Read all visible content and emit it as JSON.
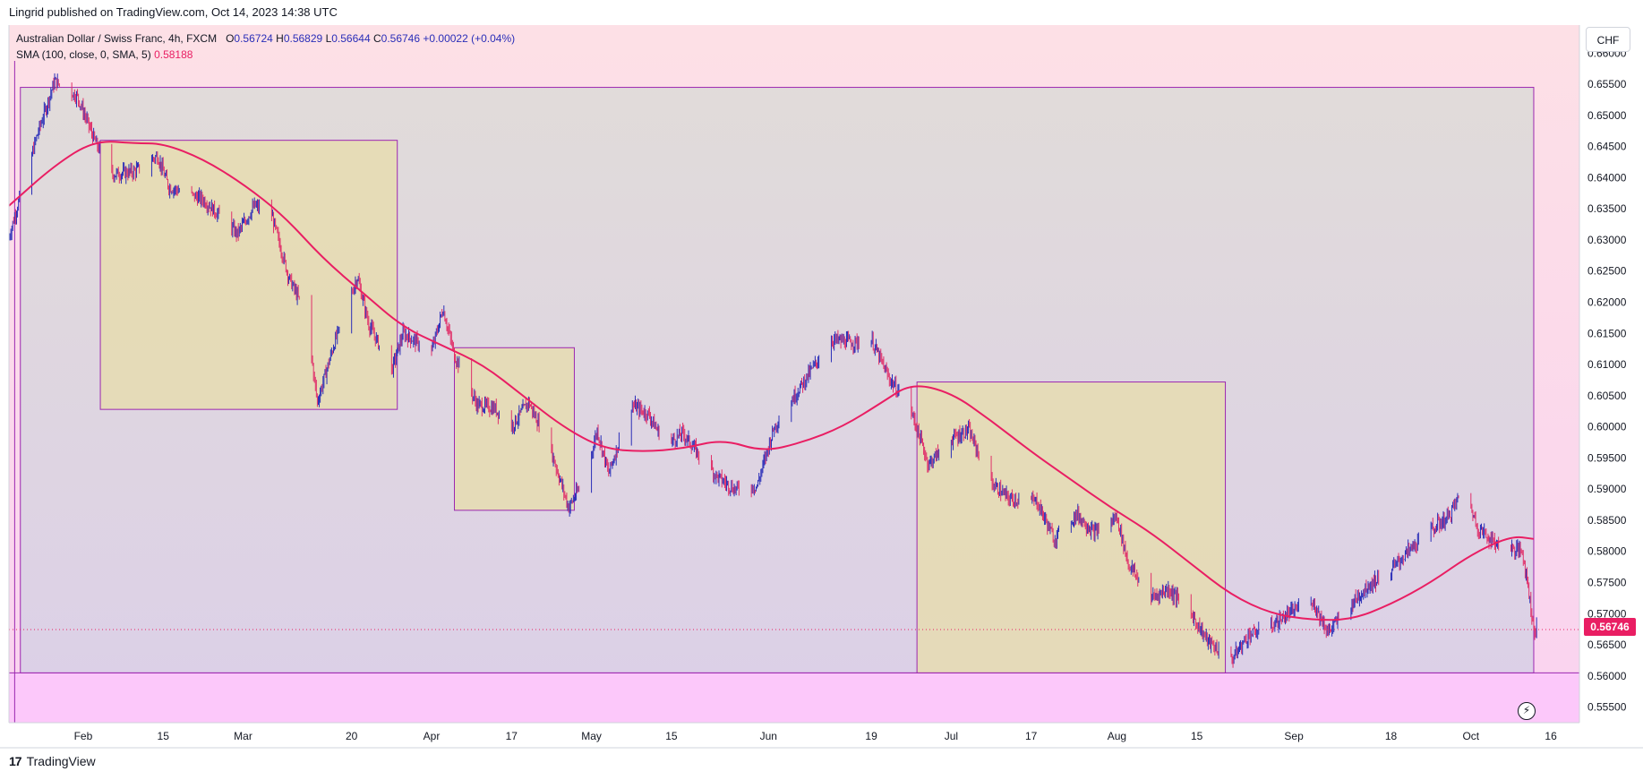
{
  "header": {
    "published": "Lingrid published on TradingView.com, Oct 14, 2023 14:38 UTC"
  },
  "legend": {
    "symbol": "Australian Dollar / Swiss Franc, 4h, FXCM",
    "open_label": "O",
    "open": "0.56724",
    "high_label": "H",
    "high": "0.56829",
    "low_label": "L",
    "low": "0.56644",
    "close_label": "C",
    "close": "0.56746",
    "change": "+0.00022 (+0.04%)",
    "sma_label": "SMA (100, close, 0, SMA, 5)",
    "sma_value": "0.58188"
  },
  "currency_button": "CHF",
  "last_price_tag": "0.56746",
  "footer": {
    "logo": "17",
    "brand": "TradingView"
  },
  "colors": {
    "candle_up": "#2a2eb8",
    "candle_down": "#e0306a",
    "sma_line": "#e91e63",
    "range_box_border": "#9c27b0",
    "range_box_fill": "#d6d6d6",
    "highlight_box_fill": "#e6dcb0",
    "bg_top": "#fde0e6",
    "bg_bottom": "#fcc8fa"
  },
  "chart_data": {
    "type": "candlestick",
    "symbol": "AUDCHF",
    "interval": "4h",
    "ylim": [
      0.5525,
      0.6645
    ],
    "y_ticks": [
      "0.66000",
      "0.65500",
      "0.65000",
      "0.64500",
      "0.64000",
      "0.63500",
      "0.63000",
      "0.62500",
      "0.62000",
      "0.61500",
      "0.61000",
      "0.60500",
      "0.60000",
      "0.59500",
      "0.59000",
      "0.58500",
      "0.58000",
      "0.57500",
      "0.57000",
      "0.56500",
      "0.56000",
      "0.55500"
    ],
    "x_ticks": [
      {
        "label": "Feb",
        "date": "2023-02-01"
      },
      {
        "label": "15",
        "date": "2023-02-15"
      },
      {
        "label": "Mar",
        "date": "2023-03-01"
      },
      {
        "label": "20",
        "date": "2023-03-20"
      },
      {
        "label": "Apr",
        "date": "2023-04-03"
      },
      {
        "label": "17",
        "date": "2023-04-17"
      },
      {
        "label": "May",
        "date": "2023-05-01"
      },
      {
        "label": "15",
        "date": "2023-05-15"
      },
      {
        "label": "Jun",
        "date": "2023-06-01"
      },
      {
        "label": "19",
        "date": "2023-06-19"
      },
      {
        "label": "Jul",
        "date": "2023-07-03"
      },
      {
        "label": "17",
        "date": "2023-07-17"
      },
      {
        "label": "Aug",
        "date": "2023-08-01"
      },
      {
        "label": "15",
        "date": "2023-08-15"
      },
      {
        "label": "Sep",
        "date": "2023-09-01"
      },
      {
        "label": "18",
        "date": "2023-09-18"
      },
      {
        "label": "Oct",
        "date": "2023-10-02"
      },
      {
        "label": "16",
        "date": "2023-10-16"
      }
    ],
    "price_path": [
      {
        "date": "2023-01-19",
        "price": 0.6305
      },
      {
        "date": "2023-01-24",
        "price": 0.647
      },
      {
        "date": "2023-01-27",
        "price": 0.6555
      },
      {
        "date": "2023-01-31",
        "price": 0.653
      },
      {
        "date": "2023-02-03",
        "price": 0.646
      },
      {
        "date": "2023-02-06",
        "price": 0.6405
      },
      {
        "date": "2023-02-10",
        "price": 0.641
      },
      {
        "date": "2023-02-14",
        "price": 0.6435
      },
      {
        "date": "2023-02-16",
        "price": 0.6385
      },
      {
        "date": "2023-02-22",
        "price": 0.6365
      },
      {
        "date": "2023-02-28",
        "price": 0.631
      },
      {
        "date": "2023-03-03",
        "price": 0.6355
      },
      {
        "date": "2023-03-06",
        "price": 0.634
      },
      {
        "date": "2023-03-09",
        "price": 0.624
      },
      {
        "date": "2023-03-12",
        "price": 0.618
      },
      {
        "date": "2023-03-14",
        "price": 0.604
      },
      {
        "date": "2023-03-17",
        "price": 0.6135
      },
      {
        "date": "2023-03-21",
        "price": 0.624
      },
      {
        "date": "2023-03-23",
        "price": 0.6165
      },
      {
        "date": "2023-03-27",
        "price": 0.609
      },
      {
        "date": "2023-03-29",
        "price": 0.615
      },
      {
        "date": "2023-04-03",
        "price": 0.612
      },
      {
        "date": "2023-04-05",
        "price": 0.619
      },
      {
        "date": "2023-04-07",
        "price": 0.6115
      },
      {
        "date": "2023-04-11",
        "price": 0.6035
      },
      {
        "date": "2023-04-14",
        "price": 0.603
      },
      {
        "date": "2023-04-17",
        "price": 0.6
      },
      {
        "date": "2023-04-20",
        "price": 0.604
      },
      {
        "date": "2023-04-24",
        "price": 0.596
      },
      {
        "date": "2023-04-27",
        "price": 0.587
      },
      {
        "date": "2023-04-30",
        "price": 0.592
      },
      {
        "date": "2023-05-02",
        "price": 0.5995
      },
      {
        "date": "2023-05-04",
        "price": 0.5925
      },
      {
        "date": "2023-05-08",
        "price": 0.6035
      },
      {
        "date": "2023-05-11",
        "price": 0.602
      },
      {
        "date": "2023-05-14",
        "price": 0.597
      },
      {
        "date": "2023-05-17",
        "price": 0.599
      },
      {
        "date": "2023-05-19",
        "price": 0.5965
      },
      {
        "date": "2023-05-23",
        "price": 0.592
      },
      {
        "date": "2023-05-26",
        "price": 0.59
      },
      {
        "date": "2023-05-30",
        "price": 0.5905
      },
      {
        "date": "2023-06-02",
        "price": 0.6
      },
      {
        "date": "2023-06-07",
        "price": 0.607
      },
      {
        "date": "2023-06-12",
        "price": 0.614
      },
      {
        "date": "2023-06-16",
        "price": 0.6135
      },
      {
        "date": "2023-06-19",
        "price": 0.614
      },
      {
        "date": "2023-06-22",
        "price": 0.608
      },
      {
        "date": "2023-06-26",
        "price": 0.6025
      },
      {
        "date": "2023-06-29",
        "price": 0.594
      },
      {
        "date": "2023-07-03",
        "price": 0.598
      },
      {
        "date": "2023-07-06",
        "price": 0.5995
      },
      {
        "date": "2023-07-10",
        "price": 0.591
      },
      {
        "date": "2023-07-13",
        "price": 0.5885
      },
      {
        "date": "2023-07-18",
        "price": 0.588
      },
      {
        "date": "2023-07-21",
        "price": 0.582
      },
      {
        "date": "2023-07-25",
        "price": 0.586
      },
      {
        "date": "2023-07-28",
        "price": 0.583
      },
      {
        "date": "2023-08-01",
        "price": 0.5855
      },
      {
        "date": "2023-08-03",
        "price": 0.578
      },
      {
        "date": "2023-08-07",
        "price": 0.5725
      },
      {
        "date": "2023-08-10",
        "price": 0.574
      },
      {
        "date": "2023-08-14",
        "price": 0.57
      },
      {
        "date": "2023-08-17",
        "price": 0.5655
      },
      {
        "date": "2023-08-21",
        "price": 0.5625
      },
      {
        "date": "2023-08-24",
        "price": 0.5665
      },
      {
        "date": "2023-08-28",
        "price": 0.568
      },
      {
        "date": "2023-09-01",
        "price": 0.5705
      },
      {
        "date": "2023-09-04",
        "price": 0.5725
      },
      {
        "date": "2023-09-07",
        "price": 0.567
      },
      {
        "date": "2023-09-11",
        "price": 0.5715
      },
      {
        "date": "2023-09-14",
        "price": 0.5745
      },
      {
        "date": "2023-09-18",
        "price": 0.577
      },
      {
        "date": "2023-09-21",
        "price": 0.58
      },
      {
        "date": "2023-09-25",
        "price": 0.5835
      },
      {
        "date": "2023-09-28",
        "price": 0.5855
      },
      {
        "date": "2023-10-01",
        "price": 0.5905
      },
      {
        "date": "2023-10-03",
        "price": 0.584
      },
      {
        "date": "2023-10-06",
        "price": 0.5815
      },
      {
        "date": "2023-10-09",
        "price": 0.5805
      },
      {
        "date": "2023-10-11",
        "price": 0.58
      },
      {
        "date": "2023-10-12",
        "price": 0.5745
      },
      {
        "date": "2023-10-13",
        "price": 0.5675
      }
    ],
    "sma_path": [
      {
        "date": "2023-01-19",
        "price": 0.6355
      },
      {
        "date": "2023-01-27",
        "price": 0.642
      },
      {
        "date": "2023-02-03",
        "price": 0.646
      },
      {
        "date": "2023-02-10",
        "price": 0.6455
      },
      {
        "date": "2023-02-15",
        "price": 0.6455
      },
      {
        "date": "2023-02-22",
        "price": 0.643
      },
      {
        "date": "2023-03-01",
        "price": 0.639
      },
      {
        "date": "2023-03-08",
        "price": 0.634
      },
      {
        "date": "2023-03-15",
        "price": 0.627
      },
      {
        "date": "2023-03-22",
        "price": 0.6215
      },
      {
        "date": "2023-03-29",
        "price": 0.616
      },
      {
        "date": "2023-04-05",
        "price": 0.613
      },
      {
        "date": "2023-04-12",
        "price": 0.61
      },
      {
        "date": "2023-04-19",
        "price": 0.605
      },
      {
        "date": "2023-04-26",
        "price": 0.6
      },
      {
        "date": "2023-05-03",
        "price": 0.5965
      },
      {
        "date": "2023-05-10",
        "price": 0.596
      },
      {
        "date": "2023-05-17",
        "price": 0.5965
      },
      {
        "date": "2023-05-24",
        "price": 0.598
      },
      {
        "date": "2023-05-31",
        "price": 0.596
      },
      {
        "date": "2023-06-07",
        "price": 0.5975
      },
      {
        "date": "2023-06-14",
        "price": 0.6
      },
      {
        "date": "2023-06-21",
        "price": 0.604
      },
      {
        "date": "2023-06-26",
        "price": 0.607
      },
      {
        "date": "2023-07-03",
        "price": 0.6055
      },
      {
        "date": "2023-07-10",
        "price": 0.601
      },
      {
        "date": "2023-07-17",
        "price": 0.596
      },
      {
        "date": "2023-07-24",
        "price": 0.5915
      },
      {
        "date": "2023-07-31",
        "price": 0.587
      },
      {
        "date": "2023-08-07",
        "price": 0.583
      },
      {
        "date": "2023-08-14",
        "price": 0.578
      },
      {
        "date": "2023-08-21",
        "price": 0.573
      },
      {
        "date": "2023-08-28",
        "price": 0.57
      },
      {
        "date": "2023-09-04",
        "price": 0.569
      },
      {
        "date": "2023-09-11",
        "price": 0.569
      },
      {
        "date": "2023-09-18",
        "price": 0.5715
      },
      {
        "date": "2023-09-25",
        "price": 0.575
      },
      {
        "date": "2023-10-02",
        "price": 0.5795
      },
      {
        "date": "2023-10-09",
        "price": 0.5825
      },
      {
        "date": "2023-10-13",
        "price": 0.582
      }
    ],
    "rectangles": [
      {
        "kind": "range",
        "start": "2023-01-21",
        "end": "2023-10-13",
        "top": 0.6545,
        "bottom": 0.5605
      },
      {
        "kind": "highlight",
        "start": "2023-02-04",
        "end": "2023-03-28",
        "top": 0.646,
        "bottom": 0.6028
      },
      {
        "kind": "highlight",
        "start": "2023-04-07",
        "end": "2023-04-28",
        "top": 0.6127,
        "bottom": 0.5866
      },
      {
        "kind": "highlight",
        "start": "2023-06-27",
        "end": "2023-08-20",
        "top": 0.6072,
        "bottom": 0.5605
      }
    ],
    "last_price": 0.56746,
    "bg_split_price": 0.5605
  }
}
